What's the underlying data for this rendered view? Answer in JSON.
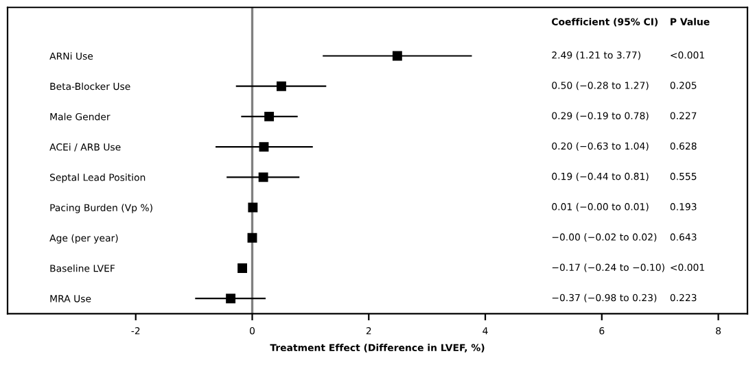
{
  "chart_data": {
    "type": "scatter",
    "orientation": "horizontal",
    "xlabel": "Treatment Effect (Difference in LVEF, %)",
    "categories": [
      "ARNi Use",
      "Beta-Blocker Use",
      "Male Gender",
      "ACEi / ARB Use",
      "Septal Lead Position",
      "Pacing Burden (Vp %)",
      "Age (per year)",
      "Baseline LVEF",
      "MRA Use"
    ],
    "series": [
      {
        "color": "#000000",
        "values": [
          2.49,
          0.5,
          0.29,
          0.2,
          0.19,
          0.01,
          0.0,
          -0.17,
          -0.37
        ],
        "errors": [
          [
            1.21,
            3.77
          ],
          [
            -0.28,
            1.27
          ],
          [
            -0.19,
            0.78
          ],
          [
            -0.63,
            1.04
          ],
          [
            -0.44,
            0.81
          ],
          null,
          null,
          [
            -0.24,
            -0.1
          ],
          [
            -0.98,
            0.23
          ]
        ]
      }
    ],
    "annotations": [
      "Coefficient (95% CI)",
      "P Value",
      "2.49 (1.21 to 3.77)",
      "<0.001",
      "0.50 (−0.28 to 1.27)",
      "0.205",
      "0.29 (−0.19 to 0.78)",
      "0.227",
      "0.20 (−0.63 to 1.04)",
      "0.628",
      "0.19 (−0.44 to 0.81)",
      "0.555",
      "0.01 (−0.00 to 0.01)",
      "0.193",
      "−0.00 (−0.02 to 0.02)",
      "0.643",
      "−0.17 (−0.24 to −0.10)",
      "<0.001",
      "−0.37 (−0.98 to 0.23)",
      "0.223"
    ],
    "xlim": [
      -4.2,
      8.5
    ],
    "xticks": [
      -2,
      0,
      2,
      4,
      6,
      8
    ],
    "ref_lines": [
      {
        "axis": "x",
        "value": 0,
        "color": "#808080"
      }
    ],
    "marker": "square",
    "grid": false,
    "legend": false
  }
}
